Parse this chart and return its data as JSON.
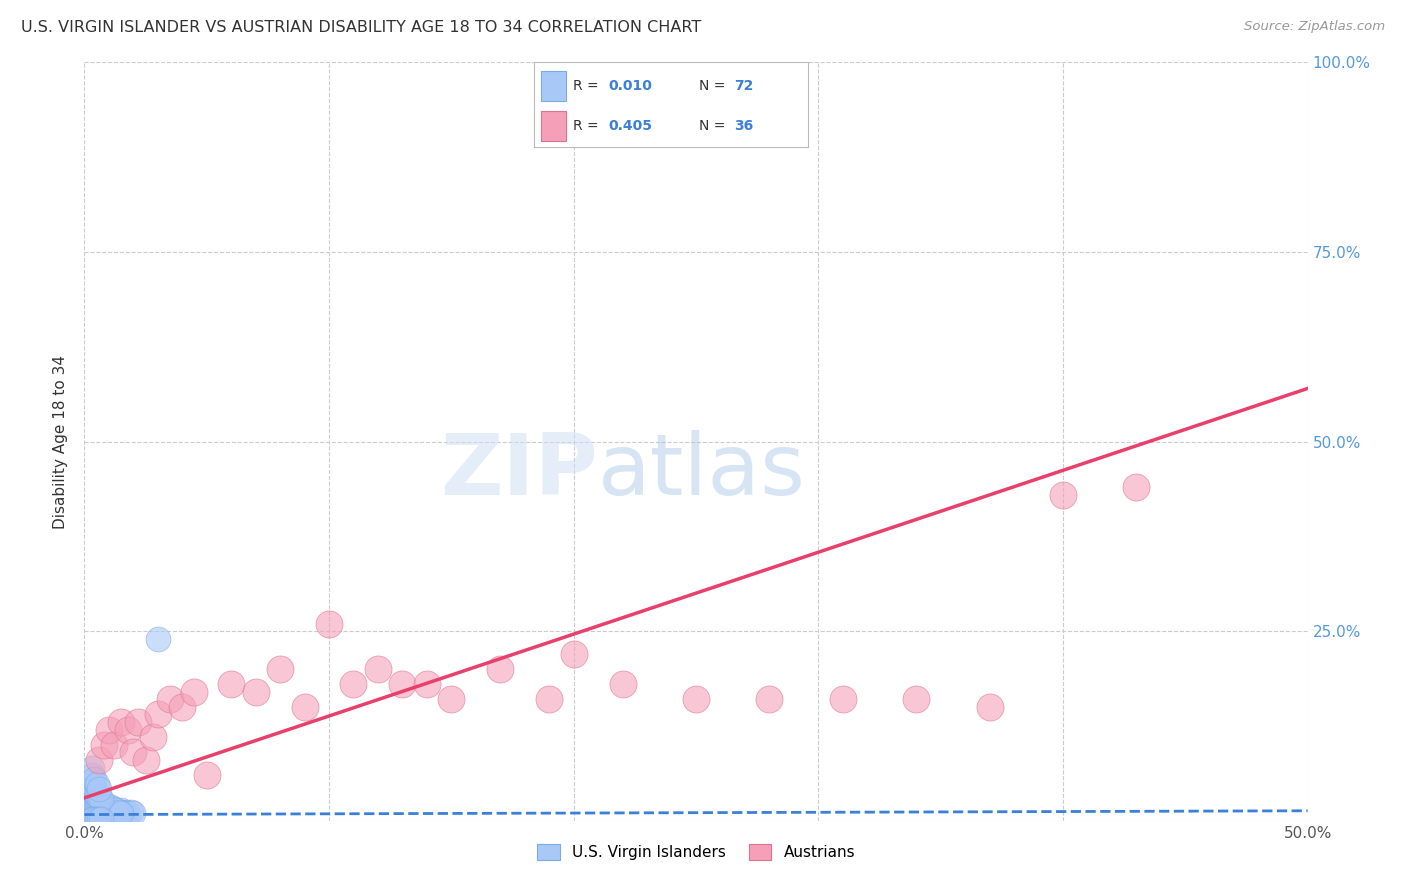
{
  "title": "U.S. VIRGIN ISLANDER VS AUSTRIAN DISABILITY AGE 18 TO 34 CORRELATION CHART",
  "source": "Source: ZipAtlas.com",
  "ylabel": "Disability Age 18 to 34",
  "xlim": [
    0,
    0.5
  ],
  "ylim": [
    0,
    1.0
  ],
  "blue_color": "#a8c8f8",
  "pink_color": "#f4a0b8",
  "blue_edge_color": "#7aaae8",
  "pink_edge_color": "#e07090",
  "blue_line_color": "#3a7fd9",
  "pink_line_color": "#e8406a",
  "right_tick_color": "#5599dd",
  "watermark_color": "#ccddf5",
  "bg_color": "#ffffff",
  "grid_color": "#cccccc",
  "title_color": "#333333",
  "blue_scatter_x": [
    0.003,
    0.003,
    0.003,
    0.003,
    0.003,
    0.004,
    0.004,
    0.004,
    0.004,
    0.005,
    0.005,
    0.005,
    0.005,
    0.006,
    0.006,
    0.006,
    0.007,
    0.007,
    0.008,
    0.008,
    0.009,
    0.009,
    0.01,
    0.01,
    0.011,
    0.012,
    0.013,
    0.014,
    0.015,
    0.015,
    0.016,
    0.017,
    0.018,
    0.019,
    0.02,
    0.003,
    0.003,
    0.003,
    0.004,
    0.004,
    0.005,
    0.005,
    0.006,
    0.007,
    0.008,
    0.009,
    0.01,
    0.011,
    0.012,
    0.013,
    0.014,
    0.015,
    0.003,
    0.003,
    0.004,
    0.004,
    0.005,
    0.005,
    0.006,
    0.007,
    0.003,
    0.003,
    0.004,
    0.005,
    0.006,
    0.03,
    0.003,
    0.003,
    0.004,
    0.005,
    0.006,
    0.007
  ],
  "blue_scatter_y": [
    0.01,
    0.012,
    0.015,
    0.018,
    0.02,
    0.01,
    0.013,
    0.016,
    0.02,
    0.008,
    0.012,
    0.015,
    0.018,
    0.01,
    0.014,
    0.018,
    0.012,
    0.016,
    0.01,
    0.015,
    0.012,
    0.016,
    0.01,
    0.014,
    0.012,
    0.01,
    0.012,
    0.01,
    0.012,
    0.014,
    0.01,
    0.012,
    0.01,
    0.012,
    0.01,
    0.025,
    0.03,
    0.035,
    0.025,
    0.03,
    0.022,
    0.028,
    0.02,
    0.022,
    0.018,
    0.02,
    0.016,
    0.018,
    0.016,
    0.014,
    0.012,
    0.01,
    0.04,
    0.05,
    0.038,
    0.045,
    0.032,
    0.038,
    0.03,
    0.028,
    0.06,
    0.07,
    0.055,
    0.048,
    0.042,
    0.24,
    0.002,
    0.002,
    0.002,
    0.002,
    0.002,
    0.002
  ],
  "pink_scatter_x": [
    0.006,
    0.008,
    0.01,
    0.012,
    0.015,
    0.018,
    0.02,
    0.022,
    0.025,
    0.028,
    0.03,
    0.035,
    0.04,
    0.045,
    0.05,
    0.06,
    0.07,
    0.08,
    0.09,
    0.1,
    0.11,
    0.12,
    0.13,
    0.14,
    0.15,
    0.17,
    0.19,
    0.2,
    0.22,
    0.25,
    0.28,
    0.31,
    0.34,
    0.37,
    0.4,
    0.43
  ],
  "pink_scatter_y": [
    0.08,
    0.1,
    0.12,
    0.1,
    0.13,
    0.12,
    0.09,
    0.13,
    0.08,
    0.11,
    0.14,
    0.16,
    0.15,
    0.17,
    0.06,
    0.18,
    0.17,
    0.2,
    0.15,
    0.26,
    0.18,
    0.2,
    0.18,
    0.18,
    0.16,
    0.2,
    0.16,
    0.22,
    0.18,
    0.16,
    0.16,
    0.16,
    0.16,
    0.15,
    0.43,
    0.44
  ],
  "blue_trend_x": [
    0.0,
    0.5
  ],
  "blue_trend_y": [
    0.008,
    0.013
  ],
  "pink_trend_x": [
    0.0,
    0.5
  ],
  "pink_trend_y": [
    0.03,
    0.57
  ],
  "legend_items": [
    {
      "r": "0.010",
      "n": "72",
      "color": "#a8c8f8",
      "edge": "#7aaae8"
    },
    {
      "r": "0.405",
      "n": "36",
      "color": "#f4a0b8",
      "edge": "#e07090"
    }
  ]
}
